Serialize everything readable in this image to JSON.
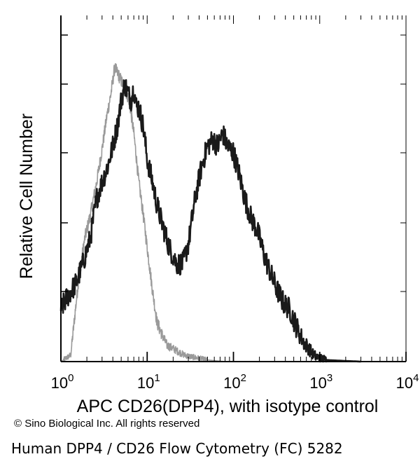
{
  "chart_data": {
    "type": "line",
    "x_scale": "log",
    "xlim": [
      1,
      10000
    ],
    "x_ticks": [
      {
        "base": "10",
        "exp": "0"
      },
      {
        "base": "10",
        "exp": "1"
      },
      {
        "base": "10",
        "exp": "2"
      },
      {
        "base": "10",
        "exp": "3"
      },
      {
        "base": "10",
        "exp": "4"
      }
    ],
    "xlabel": "APC CD26(DPP4), with isotype control",
    "ylabel": "Relative Cell Number",
    "grid": false,
    "series": [
      {
        "role": "isotype-control",
        "color": "#9a9a9a",
        "x": [
          1,
          1.3,
          1.6,
          1.9,
          2.2,
          2.6,
          3.0,
          3.4,
          3.8,
          4.2,
          4.6,
          5.0,
          5.6,
          6.2,
          7.0,
          8.0,
          9.0,
          10,
          11.5,
          13,
          15,
          17,
          20,
          23,
          27,
          32,
          40,
          50,
          65,
          80
        ],
        "y": [
          0,
          2,
          25,
          38,
          45,
          55,
          65,
          75,
          82,
          90,
          88,
          86,
          83,
          80,
          70,
          55,
          45,
          35,
          22,
          12,
          8,
          5,
          4,
          3,
          2,
          1.5,
          1,
          0.5,
          0.2,
          0
        ]
      },
      {
        "role": "CD26-stained",
        "color": "#1a1a1a",
        "x": [
          1,
          1.2,
          1.5,
          1.8,
          2.2,
          2.6,
          3.0,
          3.5,
          4.0,
          4.5,
          5.0,
          5.5,
          6.0,
          6.5,
          7.0,
          7.5,
          8.0,
          9.0,
          10,
          11.5,
          13,
          15,
          18,
          22,
          26,
          30,
          36,
          43,
          50,
          58,
          66,
          75,
          85,
          100,
          115,
          135,
          160,
          190,
          230,
          270,
          320,
          380,
          450,
          550,
          650,
          750,
          850,
          1000,
          1200,
          1400,
          1700,
          2000,
          2500,
          3000
        ],
        "y": [
          16,
          20,
          24,
          30,
          38,
          50,
          55,
          60,
          66,
          72,
          80,
          85,
          82,
          80,
          84,
          78,
          78,
          72,
          62,
          55,
          48,
          42,
          35,
          30,
          30,
          36,
          50,
          60,
          66,
          68,
          66,
          70,
          66,
          64,
          58,
          50,
          44,
          40,
          32,
          27,
          22,
          18,
          16,
          10,
          6,
          4,
          2,
          1,
          0.5,
          0.4,
          0.3,
          0.2,
          0.1,
          0
        ]
      }
    ]
  },
  "copyright": "© Sino Biological Inc. All rights reserved",
  "caption": "Human DPP4 / CD26 Flow Cytometry (FC) 5282"
}
